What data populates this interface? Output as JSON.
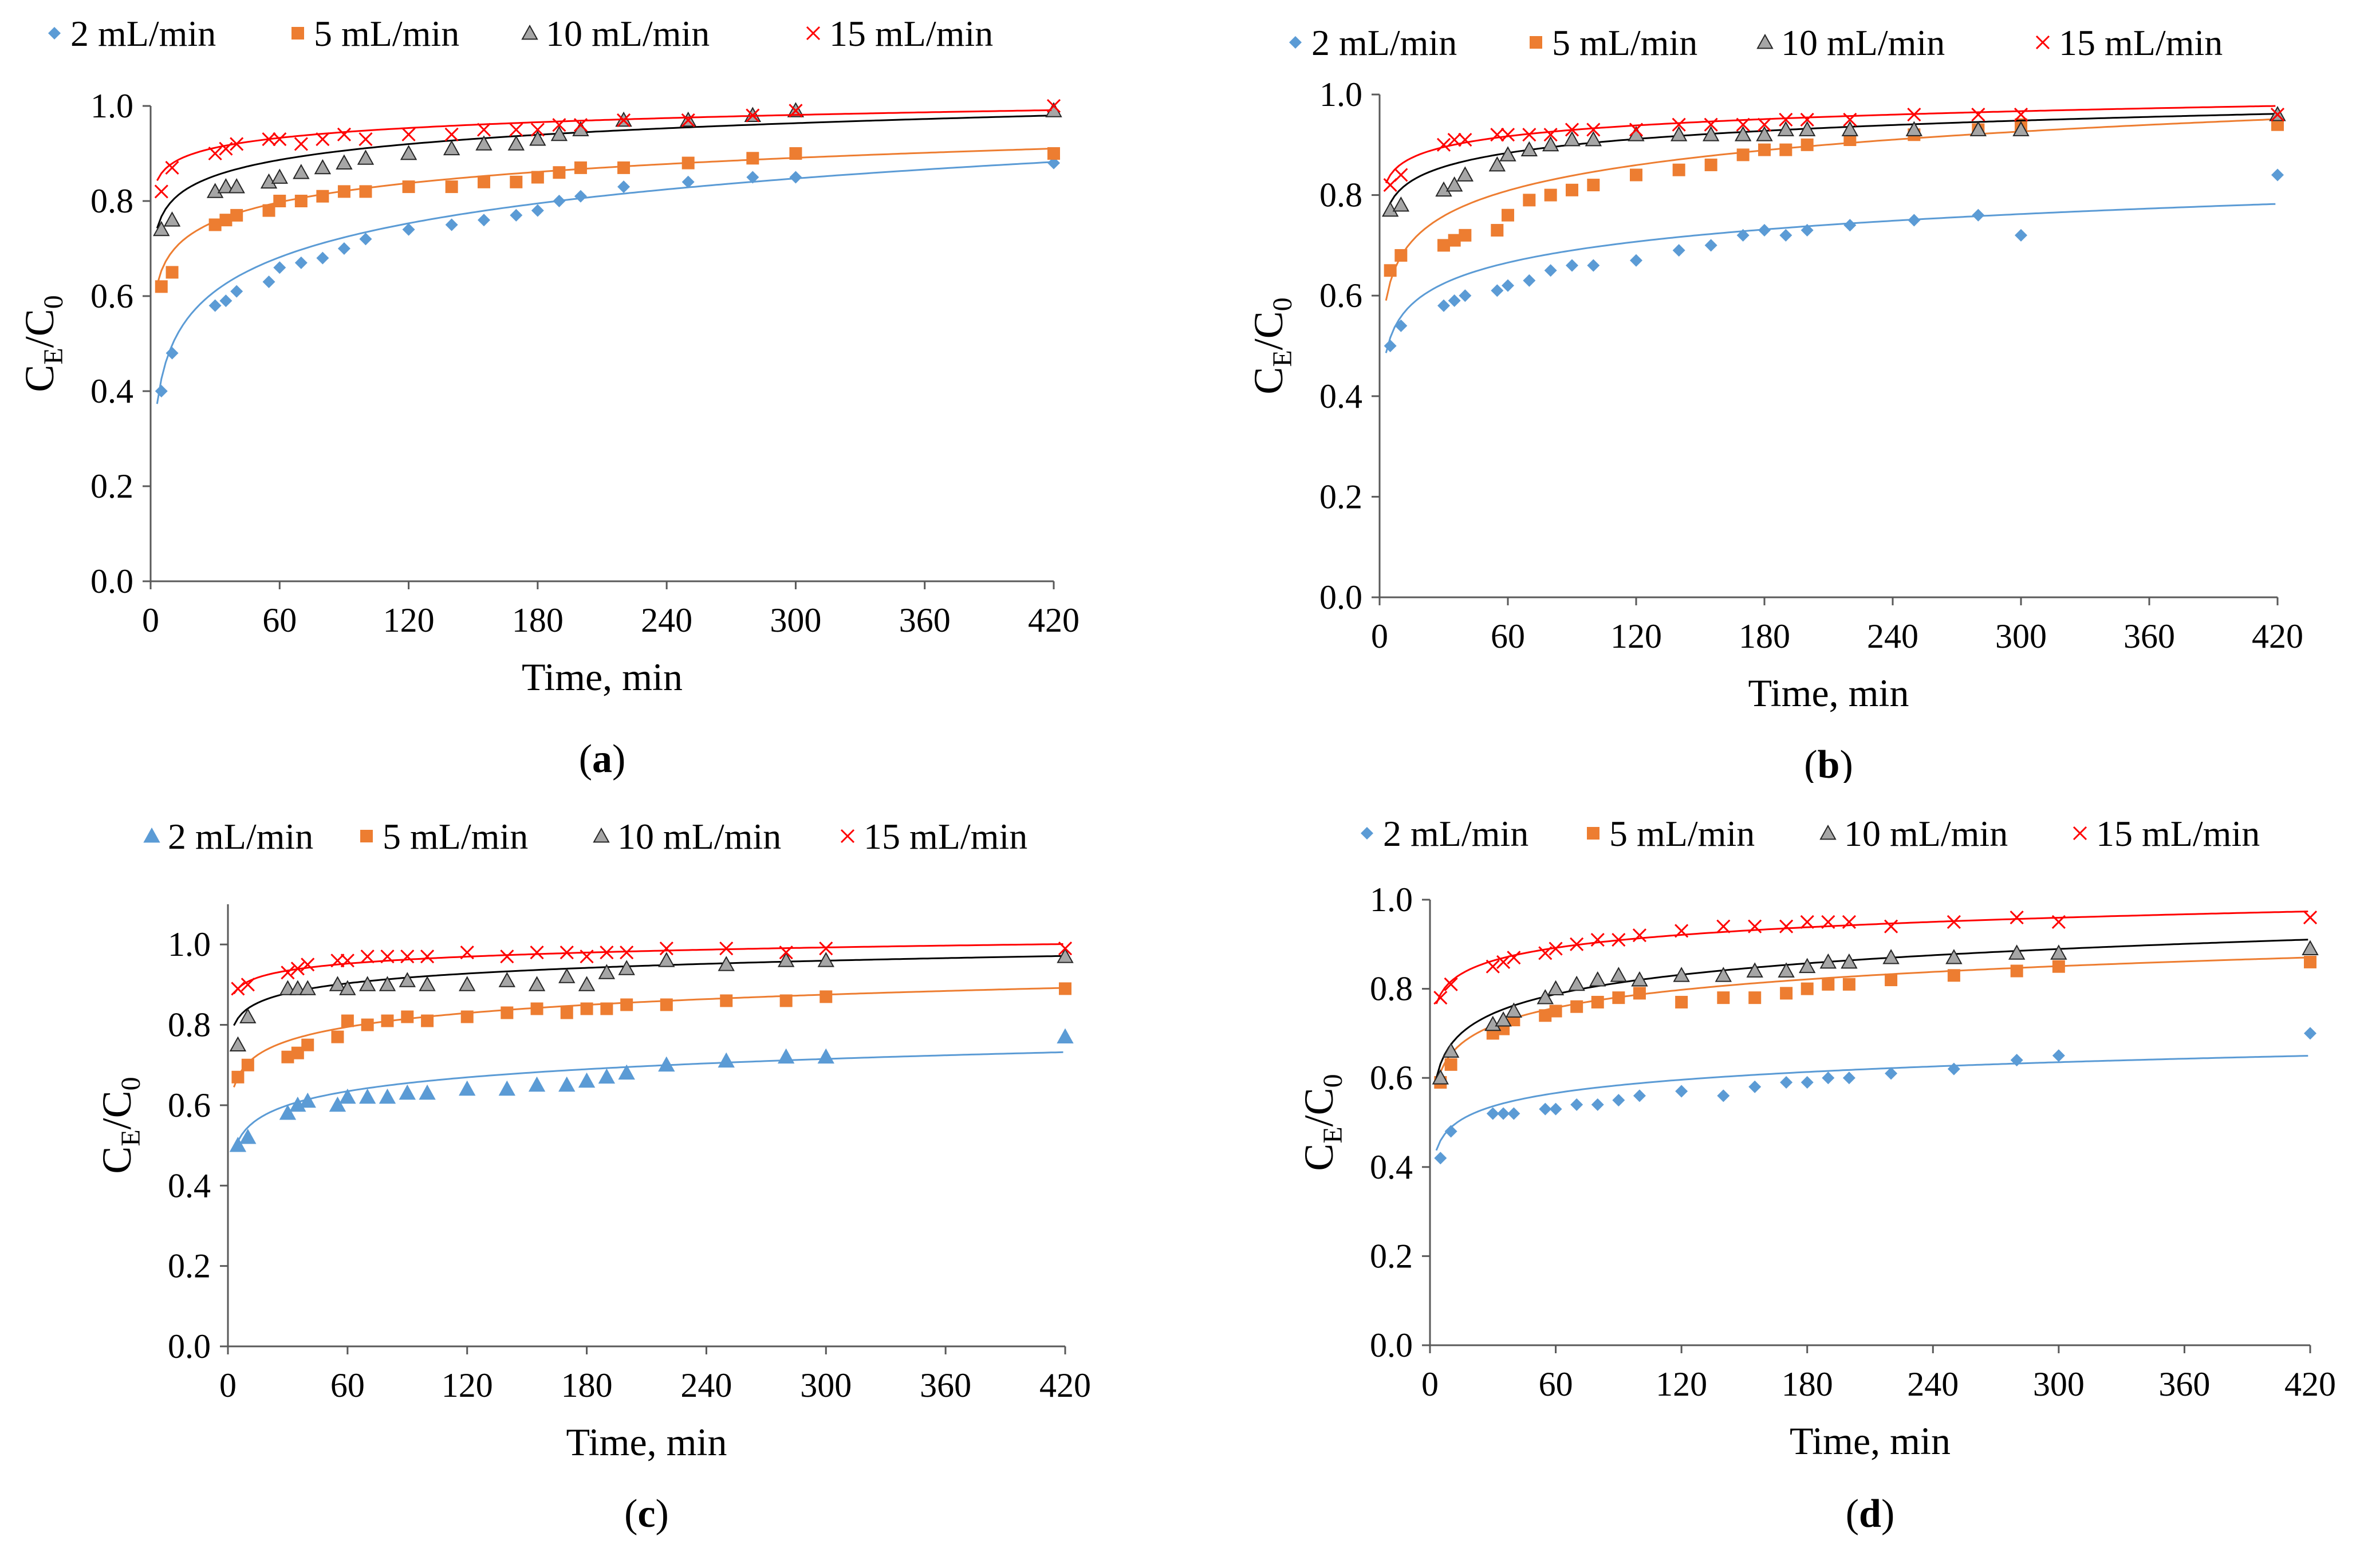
{
  "chart_data": [
    {
      "type": "scatter",
      "panel_label": "a",
      "title": "",
      "xlabel": "Time, min",
      "ylabel_main": "C",
      "ylabel_sub1": "E",
      "ylabel_mid": "/C",
      "ylabel_sub2": "0",
      "xlim": [
        0,
        420
      ],
      "ylim": [
        0,
        1.0
      ],
      "xticks": [
        "0",
        "60",
        "120",
        "180",
        "240",
        "300",
        "360",
        "420"
      ],
      "yticks": [
        "0.0",
        "0.2",
        "0.4",
        "0.6",
        "0.8",
        "1.0"
      ],
      "series": [
        {
          "name": "2 mL/min",
          "marker": "diamond",
          "color": "#5b9bd5",
          "x": [
            5,
            10,
            30,
            35,
            40,
            55,
            60,
            70,
            80,
            90,
            100,
            120,
            140,
            155,
            170,
            180,
            190,
            200,
            220,
            250,
            280,
            300,
            420
          ],
          "y": [
            0.4,
            0.48,
            0.58,
            0.59,
            0.61,
            0.63,
            0.66,
            0.67,
            0.68,
            0.7,
            0.72,
            0.74,
            0.75,
            0.76,
            0.77,
            0.78,
            0.8,
            0.81,
            0.83,
            0.84,
            0.85,
            0.85,
            0.88
          ],
          "fit_a": 0.26,
          "fit_b": 0.103
        },
        {
          "name": "5 mL/min",
          "marker": "square",
          "color": "#ed7d31",
          "x": [
            5,
            10,
            30,
            35,
            40,
            55,
            60,
            70,
            80,
            90,
            100,
            120,
            140,
            155,
            170,
            180,
            190,
            200,
            220,
            250,
            280,
            300,
            420
          ],
          "y": [
            0.62,
            0.65,
            0.75,
            0.76,
            0.77,
            0.78,
            0.8,
            0.8,
            0.81,
            0.82,
            0.82,
            0.83,
            0.83,
            0.84,
            0.84,
            0.85,
            0.86,
            0.87,
            0.87,
            0.88,
            0.89,
            0.9,
            0.9
          ],
          "fit_a": 0.56,
          "fit_b": 0.058
        },
        {
          "name": "10 mL/min",
          "marker": "triangle",
          "color": "#a6a6a6",
          "x": [
            5,
            10,
            30,
            35,
            40,
            55,
            60,
            70,
            80,
            90,
            100,
            120,
            140,
            155,
            170,
            180,
            190,
            200,
            220,
            250,
            280,
            300,
            420
          ],
          "y": [
            0.74,
            0.76,
            0.82,
            0.83,
            0.83,
            0.84,
            0.85,
            0.86,
            0.87,
            0.88,
            0.89,
            0.9,
            0.91,
            0.92,
            0.92,
            0.93,
            0.94,
            0.95,
            0.97,
            0.97,
            0.98,
            0.99,
            0.99
          ],
          "fit_a": 0.69,
          "fit_b": 0.048
        },
        {
          "name": "15 mL/min",
          "marker": "x",
          "color": "#ff0000",
          "x": [
            5,
            10,
            30,
            35,
            40,
            55,
            60,
            70,
            80,
            90,
            100,
            120,
            140,
            155,
            170,
            180,
            190,
            200,
            220,
            250,
            280,
            300,
            420
          ],
          "y": [
            0.82,
            0.87,
            0.9,
            0.91,
            0.92,
            0.93,
            0.93,
            0.92,
            0.93,
            0.94,
            0.93,
            0.94,
            0.94,
            0.95,
            0.95,
            0.95,
            0.96,
            0.96,
            0.97,
            0.97,
            0.98,
            0.99,
            1.0
          ],
          "fit_a": 0.81,
          "fit_b": 0.03
        }
      ]
    },
    {
      "type": "scatter",
      "panel_label": "b",
      "title": "",
      "xlabel": "Time, min",
      "ylabel_main": "C",
      "ylabel_sub1": "E",
      "ylabel_mid": "/C",
      "ylabel_sub2": "0",
      "xlim": [
        0,
        420
      ],
      "ylim": [
        0,
        1.0
      ],
      "xticks": [
        "0",
        "60",
        "120",
        "180",
        "240",
        "300",
        "360",
        "420"
      ],
      "yticks": [
        "0.0",
        "0.2",
        "0.4",
        "0.6",
        "0.8",
        "1.0"
      ],
      "series": [
        {
          "name": "2 mL/min",
          "marker": "diamond",
          "color": "#5b9bd5",
          "x": [
            5,
            10,
            30,
            35,
            40,
            55,
            60,
            70,
            80,
            90,
            100,
            120,
            140,
            155,
            170,
            180,
            190,
            200,
            220,
            250,
            280,
            300,
            420
          ],
          "y": [
            0.5,
            0.54,
            0.58,
            0.59,
            0.6,
            0.61,
            0.62,
            0.63,
            0.65,
            0.66,
            0.66,
            0.67,
            0.69,
            0.7,
            0.72,
            0.73,
            0.72,
            0.73,
            0.74,
            0.75,
            0.76,
            0.72,
            0.84
          ],
          "fit_a": 0.42,
          "fit_b": 0.06
        },
        {
          "name": "5 mL/min",
          "marker": "square",
          "color": "#ed7d31",
          "x": [
            5,
            10,
            30,
            35,
            40,
            55,
            60,
            70,
            80,
            90,
            100,
            120,
            140,
            155,
            170,
            180,
            190,
            200,
            220,
            250,
            280,
            300,
            420
          ],
          "y": [
            0.65,
            0.68,
            0.7,
            0.71,
            0.72,
            0.73,
            0.76,
            0.79,
            0.8,
            0.81,
            0.82,
            0.84,
            0.85,
            0.86,
            0.88,
            0.89,
            0.89,
            0.9,
            0.91,
            0.92,
            0.93,
            0.94,
            0.94
          ],
          "fit_a": 0.51,
          "fit_b": 0.073
        },
        {
          "name": "10 mL/min",
          "marker": "triangle",
          "color": "#a6a6a6",
          "x": [
            5,
            10,
            30,
            35,
            40,
            55,
            60,
            70,
            80,
            90,
            100,
            120,
            140,
            155,
            170,
            180,
            190,
            200,
            220,
            250,
            280,
            300,
            420
          ],
          "y": [
            0.77,
            0.78,
            0.81,
            0.82,
            0.84,
            0.86,
            0.88,
            0.89,
            0.9,
            0.91,
            0.91,
            0.92,
            0.92,
            0.92,
            0.92,
            0.92,
            0.93,
            0.93,
            0.93,
            0.93,
            0.93,
            0.93,
            0.96
          ],
          "fit_a": 0.72,
          "fit_b": 0.04
        },
        {
          "name": "15 mL/min",
          "marker": "x",
          "color": "#ff0000",
          "x": [
            5,
            10,
            30,
            35,
            40,
            55,
            60,
            70,
            80,
            90,
            100,
            120,
            140,
            155,
            170,
            180,
            190,
            200,
            220,
            250,
            280,
            300,
            420
          ],
          "y": [
            0.82,
            0.84,
            0.9,
            0.91,
            0.91,
            0.92,
            0.92,
            0.92,
            0.92,
            0.93,
            0.93,
            0.93,
            0.94,
            0.94,
            0.94,
            0.94,
            0.95,
            0.95,
            0.95,
            0.96,
            0.96,
            0.96,
            0.96
          ],
          "fit_a": 0.79,
          "fit_b": 0.031
        }
      ]
    },
    {
      "type": "scatter",
      "panel_label": "c",
      "title": "",
      "xlabel": "Time, min",
      "ylabel_main": "C",
      "ylabel_sub1": "E",
      "ylabel_mid": "/C",
      "ylabel_sub2": "0",
      "xlim": [
        0,
        420
      ],
      "ylim": [
        0,
        1.1
      ],
      "xticks": [
        "0",
        "60",
        "120",
        "180",
        "240",
        "300",
        "360",
        "420"
      ],
      "yticks": [
        "0.0",
        "0.2",
        "0.4",
        "0.6",
        "0.8",
        "1.0"
      ],
      "series": [
        {
          "name": "2 mL/min",
          "marker": "triangle",
          "color": "#5b9bd5",
          "x": [
            5,
            10,
            30,
            35,
            40,
            55,
            60,
            70,
            80,
            90,
            100,
            120,
            140,
            155,
            170,
            180,
            190,
            200,
            220,
            250,
            280,
            300,
            420
          ],
          "y": [
            0.5,
            0.52,
            0.58,
            0.6,
            0.61,
            0.6,
            0.62,
            0.62,
            0.62,
            0.63,
            0.63,
            0.64,
            0.64,
            0.65,
            0.65,
            0.66,
            0.67,
            0.68,
            0.7,
            0.71,
            0.72,
            0.72,
            0.77
          ],
          "fit_a": 0.43,
          "fit_b": 0.05
        },
        {
          "name": "5 mL/min",
          "marker": "square",
          "color": "#ed7d31",
          "x": [
            5,
            10,
            30,
            35,
            40,
            55,
            60,
            70,
            80,
            90,
            100,
            120,
            140,
            155,
            170,
            180,
            190,
            200,
            220,
            250,
            280,
            300,
            420
          ],
          "y": [
            0.67,
            0.7,
            0.72,
            0.73,
            0.75,
            0.77,
            0.81,
            0.8,
            0.81,
            0.82,
            0.81,
            0.82,
            0.83,
            0.84,
            0.83,
            0.84,
            0.84,
            0.85,
            0.85,
            0.86,
            0.86,
            0.87,
            0.89
          ],
          "fit_a": 0.59,
          "fit_b": 0.05
        },
        {
          "name": "10 mL/min",
          "marker": "triangle",
          "color": "#a6a6a6",
          "x": [
            5,
            10,
            30,
            35,
            40,
            55,
            60,
            70,
            80,
            90,
            100,
            120,
            140,
            155,
            170,
            180,
            190,
            200,
            220,
            250,
            280,
            300,
            420
          ],
          "y": [
            0.75,
            0.82,
            0.89,
            0.89,
            0.89,
            0.9,
            0.89,
            0.9,
            0.9,
            0.91,
            0.9,
            0.9,
            0.91,
            0.9,
            0.92,
            0.9,
            0.93,
            0.94,
            0.96,
            0.95,
            0.96,
            0.96,
            0.97
          ],
          "fit_a": 0.76,
          "fit_b": 0.035
        },
        {
          "name": "15 mL/min",
          "marker": "x",
          "color": "#ff0000",
          "x": [
            5,
            10,
            30,
            35,
            40,
            55,
            60,
            70,
            80,
            90,
            100,
            120,
            140,
            155,
            170,
            180,
            190,
            200,
            220,
            250,
            280,
            300,
            420
          ],
          "y": [
            0.89,
            0.9,
            0.93,
            0.94,
            0.95,
            0.96,
            0.96,
            0.97,
            0.97,
            0.97,
            0.97,
            0.98,
            0.97,
            0.98,
            0.98,
            0.97,
            0.98,
            0.98,
            0.99,
            0.99,
            0.98,
            0.99,
            0.99
          ],
          "fit_a": 0.85,
          "fit_b": 0.025
        }
      ]
    },
    {
      "type": "scatter",
      "panel_label": "d",
      "title": "",
      "xlabel": "Time, min",
      "ylabel_main": "C",
      "ylabel_sub1": "E",
      "ylabel_mid": "/C",
      "ylabel_sub2": "0",
      "xlim": [
        0,
        420
      ],
      "ylim": [
        0,
        1.0
      ],
      "xticks": [
        "0",
        "60",
        "120",
        "180",
        "240",
        "300",
        "360",
        "420"
      ],
      "yticks": [
        "0.0",
        "0.2",
        "0.4",
        "0.6",
        "0.8",
        "1.0"
      ],
      "series": [
        {
          "name": "2 mL/min",
          "marker": "diamond",
          "color": "#5b9bd5",
          "x": [
            5,
            10,
            30,
            35,
            40,
            55,
            60,
            70,
            80,
            90,
            100,
            120,
            140,
            155,
            170,
            180,
            190,
            200,
            220,
            250,
            280,
            300,
            420
          ],
          "y": [
            0.42,
            0.48,
            0.52,
            0.52,
            0.52,
            0.53,
            0.53,
            0.54,
            0.54,
            0.55,
            0.56,
            0.57,
            0.56,
            0.58,
            0.59,
            0.59,
            0.6,
            0.6,
            0.61,
            0.62,
            0.64,
            0.65,
            0.7
          ],
          "fit_a": 0.39,
          "fit_b": 0.043
        },
        {
          "name": "5 mL/min",
          "marker": "square",
          "color": "#ed7d31",
          "x": [
            5,
            10,
            30,
            35,
            40,
            55,
            60,
            70,
            80,
            90,
            100,
            120,
            140,
            155,
            170,
            180,
            190,
            200,
            220,
            250,
            280,
            300,
            420
          ],
          "y": [
            0.59,
            0.63,
            0.7,
            0.71,
            0.73,
            0.74,
            0.75,
            0.76,
            0.77,
            0.78,
            0.79,
            0.77,
            0.78,
            0.78,
            0.79,
            0.8,
            0.81,
            0.81,
            0.82,
            0.83,
            0.84,
            0.85,
            0.86
          ],
          "fit_a": 0.52,
          "fit_b": 0.058
        },
        {
          "name": "10 mL/min",
          "marker": "triangle",
          "color": "#a6a6a6",
          "x": [
            5,
            10,
            30,
            35,
            40,
            55,
            60,
            70,
            80,
            90,
            100,
            120,
            140,
            155,
            170,
            180,
            190,
            200,
            220,
            250,
            280,
            300,
            420
          ],
          "y": [
            0.6,
            0.66,
            0.72,
            0.73,
            0.75,
            0.78,
            0.8,
            0.81,
            0.82,
            0.83,
            0.82,
            0.83,
            0.83,
            0.84,
            0.84,
            0.85,
            0.86,
            0.86,
            0.87,
            0.87,
            0.88,
            0.88,
            0.89
          ],
          "fit_a": 0.53,
          "fit_b": 0.063
        },
        {
          "name": "15 mL/min",
          "marker": "x",
          "color": "#ff0000",
          "x": [
            5,
            10,
            30,
            35,
            40,
            55,
            60,
            70,
            80,
            90,
            100,
            120,
            140,
            155,
            170,
            180,
            190,
            200,
            220,
            250,
            280,
            300,
            420
          ],
          "y": [
            0.78,
            0.81,
            0.85,
            0.86,
            0.87,
            0.88,
            0.89,
            0.9,
            0.91,
            0.91,
            0.92,
            0.93,
            0.94,
            0.94,
            0.94,
            0.95,
            0.95,
            0.95,
            0.94,
            0.95,
            0.96,
            0.95,
            0.96
          ],
          "fit_a": 0.72,
          "fit_b": 0.042
        }
      ]
    }
  ]
}
